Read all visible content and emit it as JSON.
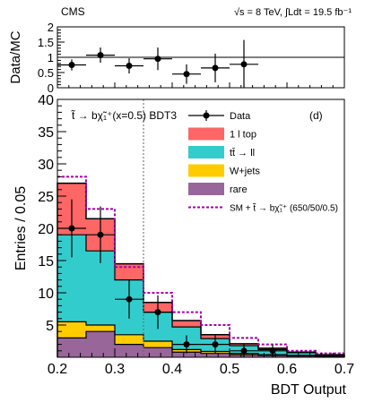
{
  "header": {
    "experiment": "CMS",
    "energy": "√s = 8 TeV, ∫Ldt = 19.5 fb⁻¹"
  },
  "ratio_panel": {
    "ylabel": "Data/MC",
    "y_ticks": [
      "0",
      "0.5",
      "1",
      "1.5",
      "2"
    ]
  },
  "main_panel": {
    "ylabel": "Entries / 0.05",
    "xlabel": "BDT Output",
    "annotation": "t̃ → bχ̃₁⁺(x=0.5) BDT3",
    "panel_tag": "(d)",
    "y_ticks": [
      "5",
      "10",
      "15",
      "20",
      "25",
      "30",
      "35",
      "40"
    ],
    "x_ticks": [
      "0.2",
      "0.3",
      "0.4",
      "0.5",
      "0.6",
      "0.7"
    ]
  },
  "legend": [
    {
      "key": "data",
      "label": "Data",
      "style": "marker"
    },
    {
      "key": "one_l_top",
      "label": "1 l top",
      "style": "box"
    },
    {
      "key": "ttbar_ll",
      "label": "tt̄ → ll",
      "style": "box"
    },
    {
      "key": "wjets",
      "label": "W+jets",
      "style": "box"
    },
    {
      "key": "rare",
      "label": "rare",
      "style": "box"
    },
    {
      "key": "signal",
      "label": "SM + t̃ → bχ̃₁⁺ (650/50/0.5)",
      "style": "dashed"
    }
  ],
  "colors": {
    "rare": "#996699",
    "wjets": "#ffcc00",
    "ttbar_ll": "#33cccc",
    "one_l_top": "#ff6666",
    "signal": "#aa00aa",
    "data": "#000000",
    "cut_line": "#666666"
  },
  "chart_data": [
    {
      "type": "bar",
      "stacked": true,
      "bin_edges": [
        0.2,
        0.25,
        0.3,
        0.35,
        0.4,
        0.45,
        0.5,
        0.55,
        0.6,
        0.65,
        0.7
      ],
      "series": [
        {
          "name": "rare",
          "values": [
            3.0,
            4.0,
            2.0,
            1.5,
            0.8,
            0.6,
            0.4,
            0.3,
            0.2,
            0.1
          ]
        },
        {
          "name": "W+jets",
          "values": [
            2.5,
            1.0,
            1.5,
            1.0,
            0.4,
            0.3,
            0.2,
            0.1,
            0.1,
            0.0
          ]
        },
        {
          "name": "tt̄ → ll",
          "values": [
            13.5,
            11.5,
            8.5,
            4.5,
            3.5,
            2.0,
            1.2,
            0.8,
            0.4,
            0.2
          ]
        },
        {
          "name": "1 l top",
          "values": [
            8.0,
            5.0,
            2.5,
            1.5,
            1.0,
            0.6,
            0.3,
            0.2,
            0.1,
            0.1
          ]
        }
      ],
      "signal_total": {
        "name": "SM + t̃ → bχ̃₁⁺ (650/50/0.5)",
        "values": [
          28.0,
          23.0,
          14.0,
          10.0,
          7.0,
          5.0,
          3.0,
          2.0,
          1.0,
          0.6
        ]
      },
      "data": {
        "name": "Data",
        "x": [
          0.225,
          0.275,
          0.325,
          0.375,
          0.425,
          0.475,
          0.525,
          0.575
        ],
        "y": [
          20,
          19,
          9,
          7,
          2,
          2,
          1,
          1
        ],
        "err": [
          4.5,
          4.4,
          3.0,
          2.6,
          1.4,
          1.4,
          1.0,
          1.0
        ]
      },
      "cut_x": 0.35,
      "xlim": [
        0.2,
        0.7
      ],
      "ylim": [
        0,
        40
      ]
    },
    {
      "type": "scatter",
      "x": [
        0.225,
        0.275,
        0.325,
        0.375,
        0.425,
        0.475,
        0.525
      ],
      "y": [
        0.75,
        1.07,
        0.72,
        0.95,
        0.45,
        0.65,
        0.77
      ],
      "yerr": [
        0.18,
        0.25,
        0.25,
        0.37,
        0.32,
        0.47,
        0.8
      ],
      "xlim": [
        0.2,
        0.7
      ],
      "ylim": [
        0,
        2
      ],
      "reference_line": 1
    }
  ]
}
